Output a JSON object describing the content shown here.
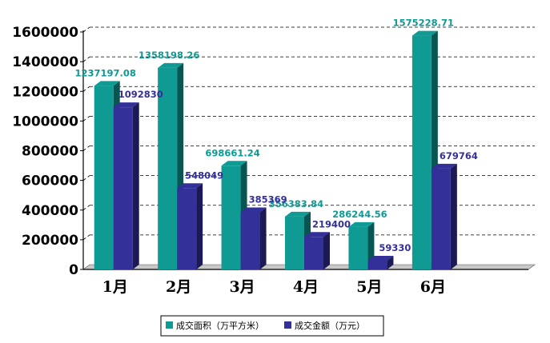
{
  "chart_data": {
    "type": "bar",
    "categories": [
      "1月",
      "2月",
      "3月",
      "4月",
      "5月",
      "6月",
      ""
    ],
    "series": [
      {
        "name": "成交面积（万平方米）",
        "color": "#0f9a94",
        "values": [
          1237197.08,
          1358198.26,
          698661.24,
          356383.84,
          286244.56,
          1575228.71,
          null
        ],
        "labels": [
          "1237197.08",
          "1358198.26",
          "698661.24",
          "356383.84",
          "286244.56",
          "1575228.71",
          ""
        ]
      },
      {
        "name": "成交金额（万元）",
        "color": "#33309a",
        "values": [
          1092830,
          548049,
          385369,
          219400,
          59330,
          679764,
          null
        ],
        "labels": [
          "1092830",
          "548049",
          "385369",
          "219400",
          "59330",
          "679764",
          ""
        ]
      }
    ],
    "yticks": [
      "0",
      "200000",
      "400000",
      "600000",
      "800000",
      "1000000",
      "1200000",
      "1400000",
      "1600000"
    ],
    "ylim": [
      0,
      1600000
    ],
    "grid": true,
    "legend": "bottom",
    "style": "3d-bar"
  }
}
